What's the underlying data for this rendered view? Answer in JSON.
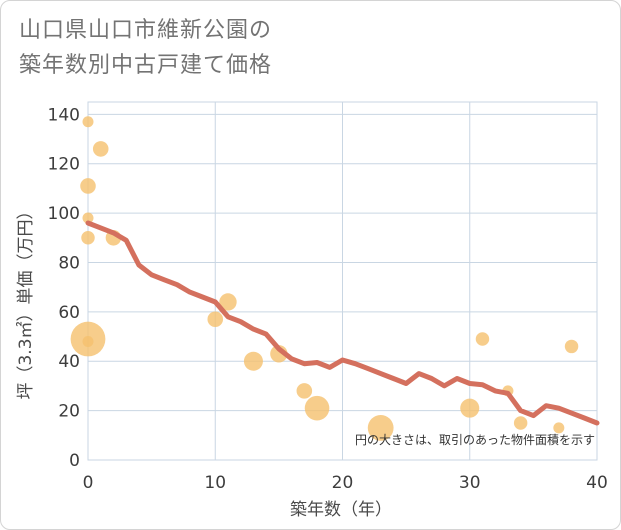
{
  "title_lines": [
    "山口県山口市維新公園の",
    "築年数別中古戸建て価格"
  ],
  "chart_data": {
    "type": "scatter",
    "title": "山口県山口市維新公園の築年数別中古戸建て価格",
    "xlabel": "築年数（年）",
    "ylabel": "坪（3.3㎡）単価（万円）",
    "xlim": [
      0,
      40
    ],
    "ylim": [
      0,
      145
    ],
    "xticks": [
      0,
      10,
      20,
      30,
      40
    ],
    "yticks": [
      0,
      20,
      40,
      60,
      80,
      100,
      120,
      140
    ],
    "grid": true,
    "note": "円の大きさは、取引のあった物件面積を示す",
    "colors": {
      "bubble": "#f5c06e",
      "trend": "#d4705e",
      "grid": "#c9d6e3"
    },
    "bubbles": [
      {
        "x": 0,
        "y": 137,
        "size": 1
      },
      {
        "x": 0,
        "y": 111,
        "size": 2
      },
      {
        "x": 0,
        "y": 98,
        "size": 1
      },
      {
        "x": 0,
        "y": 90,
        "size": 1.5
      },
      {
        "x": 0,
        "y": 49,
        "size": 10
      },
      {
        "x": 0,
        "y": 48,
        "size": 1
      },
      {
        "x": 1,
        "y": 126,
        "size": 2
      },
      {
        "x": 2,
        "y": 90,
        "size": 2
      },
      {
        "x": 10,
        "y": 57,
        "size": 2
      },
      {
        "x": 11,
        "y": 64,
        "size": 2.5
      },
      {
        "x": 13,
        "y": 40,
        "size": 3
      },
      {
        "x": 15,
        "y": 43,
        "size": 2.5
      },
      {
        "x": 17,
        "y": 28,
        "size": 2
      },
      {
        "x": 18,
        "y": 21,
        "size": 5
      },
      {
        "x": 23,
        "y": 13,
        "size": 5.5
      },
      {
        "x": 30,
        "y": 21,
        "size": 3
      },
      {
        "x": 31,
        "y": 49,
        "size": 1.5
      },
      {
        "x": 33,
        "y": 28,
        "size": 1
      },
      {
        "x": 34,
        "y": 15,
        "size": 1.5
      },
      {
        "x": 37,
        "y": 13,
        "size": 1
      },
      {
        "x": 38,
        "y": 46,
        "size": 1.5
      }
    ],
    "trend": {
      "x": [
        0,
        1,
        2,
        3,
        4,
        5,
        6,
        7,
        8,
        9,
        10,
        11,
        12,
        13,
        14,
        15,
        16,
        17,
        18,
        19,
        20,
        21,
        22,
        23,
        24,
        25,
        26,
        27,
        28,
        29,
        30,
        31,
        32,
        33,
        34,
        35,
        36,
        37,
        38,
        39,
        40
      ],
      "y": [
        96,
        94,
        92,
        89,
        79,
        75,
        73,
        71,
        68,
        66,
        64,
        58,
        56,
        53,
        51,
        45,
        41,
        39,
        39.5,
        37.5,
        40.5,
        39,
        37,
        35,
        33,
        31,
        35,
        33,
        30,
        33,
        31,
        30.5,
        28,
        27,
        20,
        18,
        22,
        21,
        19,
        17,
        15
      ]
    }
  }
}
